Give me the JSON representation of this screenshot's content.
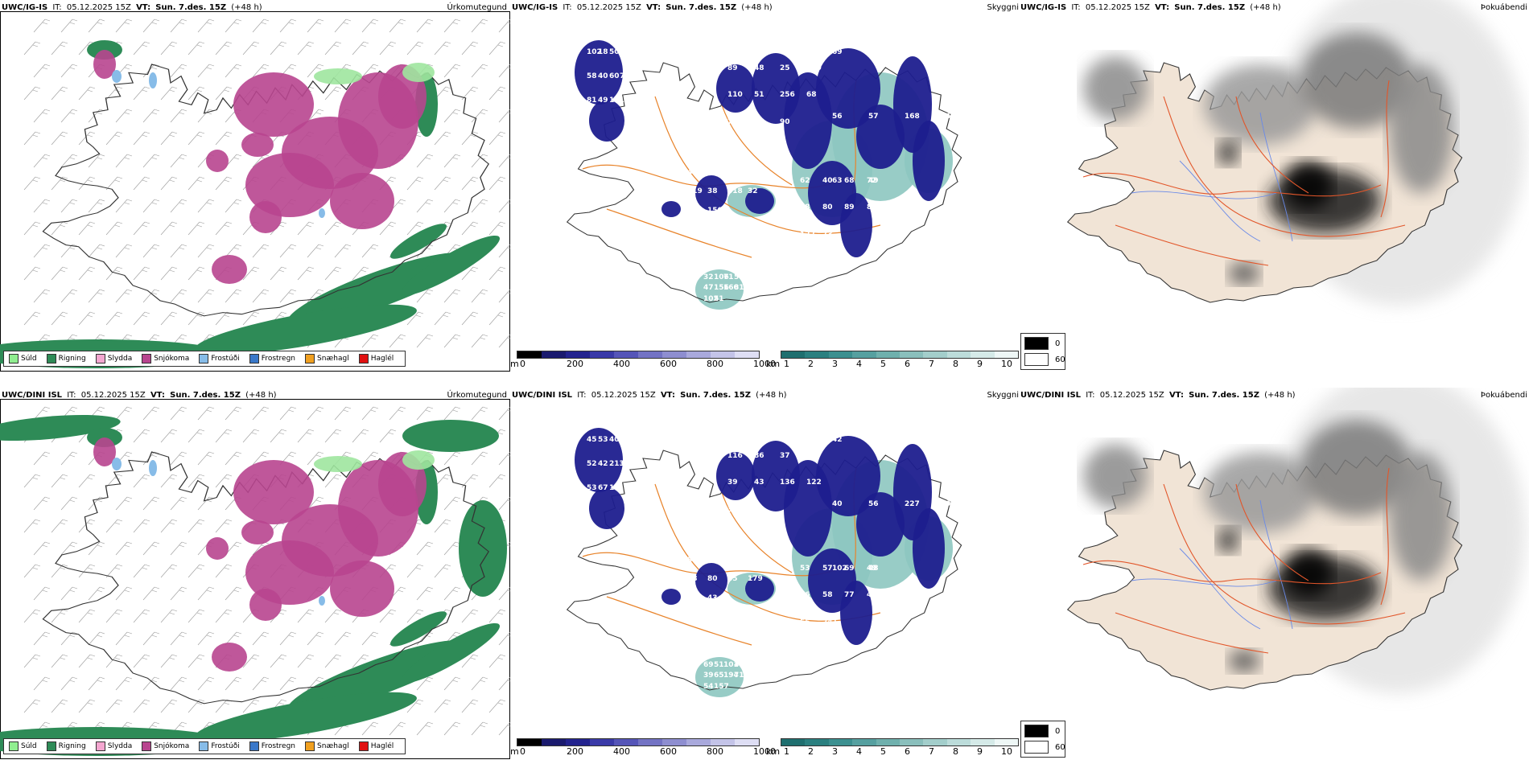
{
  "rows": [
    {
      "model": "UWC/IG-IS",
      "it_label": "IT:",
      "it_value": "05.12.2025 15Z",
      "vt_label": "VT:",
      "vt_value": "Sun. 7.des. 15Z",
      "lead": "(+48 h)",
      "vis_numbers": [
        "102",
        "89",
        "69",
        "42",
        "62",
        "32",
        "18",
        "48",
        "52",
        "54",
        "40",
        "106",
        "50",
        "25",
        "85",
        "55",
        "68",
        "71",
        "38",
        "100",
        "46",
        "43",
        "72",
        "54",
        "58",
        "110",
        "56",
        "119",
        "58",
        "47",
        "40",
        "51",
        "57",
        "38",
        "80",
        "156",
        "60",
        "256",
        "168",
        "418",
        "89",
        "160",
        "75",
        "68",
        "56",
        "32",
        "82",
        "81",
        "81",
        "79",
        "63",
        "100",
        "122",
        "102",
        "49",
        "45",
        "49",
        "150",
        "73",
        "51",
        "121",
        "90"
      ]
    },
    {
      "model": "UWC/DINI ISL",
      "it_label": "IT:",
      "it_value": "05.12.2025 15Z",
      "vt_label": "VT:",
      "vt_value": "Sun. 7.des. 15Z",
      "lead": "(+48 h)",
      "vis_numbers": [
        "45",
        "116",
        "42",
        "59",
        "53",
        "69",
        "53",
        "86",
        "51",
        "59",
        "57",
        "51",
        "40",
        "37",
        "49",
        "41",
        "69",
        "101",
        "50",
        "53",
        "55",
        "67",
        "49",
        "40",
        "52",
        "39",
        "40",
        "38",
        "46",
        "39",
        "42",
        "43",
        "56",
        "80",
        "58",
        "65",
        "213",
        "136",
        "227",
        "85",
        "77",
        "194",
        "129",
        "122",
        "49",
        "179",
        "49",
        "71",
        "53",
        "39",
        "102",
        "82",
        "55",
        "54",
        "67",
        "55",
        "48",
        "43",
        "241",
        "157",
        "16"
      ]
    }
  ],
  "titles": {
    "precip": "Úrkomutegund",
    "visibility": "Skyggni",
    "fog": "Þokuábendi"
  },
  "precip_legend": [
    {
      "label": "Súld",
      "color": "#90ee90"
    },
    {
      "label": "Rigning",
      "color": "#2e8b57"
    },
    {
      "label": "Slydda",
      "color": "#f4a6d0"
    },
    {
      "label": "Snjókoma",
      "color": "#b8458f"
    },
    {
      "label": "Frostúði",
      "color": "#87bce8"
    },
    {
      "label": "Frostregn",
      "color": "#3a78c9"
    },
    {
      "label": "Snæhagl",
      "color": "#f0a020"
    },
    {
      "label": "Haglél",
      "color": "#e01010"
    }
  ],
  "ceiling_scale": {
    "unit": "m",
    "ticks": [
      "0",
      "200",
      "400",
      "600",
      "800",
      "1000"
    ],
    "colors": [
      "#000000",
      "#1a1a6e",
      "#23238e",
      "#3a3aa8",
      "#5555b8",
      "#7373c4",
      "#8e8ed0",
      "#a9a9dc",
      "#c4c4e8",
      "#dedef4"
    ]
  },
  "vis_scale": {
    "unit": "km",
    "ticks": [
      "1",
      "2",
      "3",
      "4",
      "5",
      "6",
      "7",
      "8",
      "9",
      "10"
    ],
    "colors": [
      "#1f6f6f",
      "#2b8080",
      "#3c9090",
      "#56a0a0",
      "#6fb0ad",
      "#8abfbc",
      "#a3cecb",
      "#bcdcda",
      "#d5eae8",
      "#eef7f6"
    ]
  },
  "fog_legend": [
    {
      "label": "0",
      "color": "#000000"
    },
    {
      "label": "60",
      "color": "#ffffff"
    }
  ],
  "colors": {
    "land_fog": "#f1e4d6",
    "roads": "#e2562a",
    "rivers": "#6a8ae8",
    "vis_roads": "#e8832a",
    "rain": "#2e8b57",
    "snow": "#b8458f"
  }
}
